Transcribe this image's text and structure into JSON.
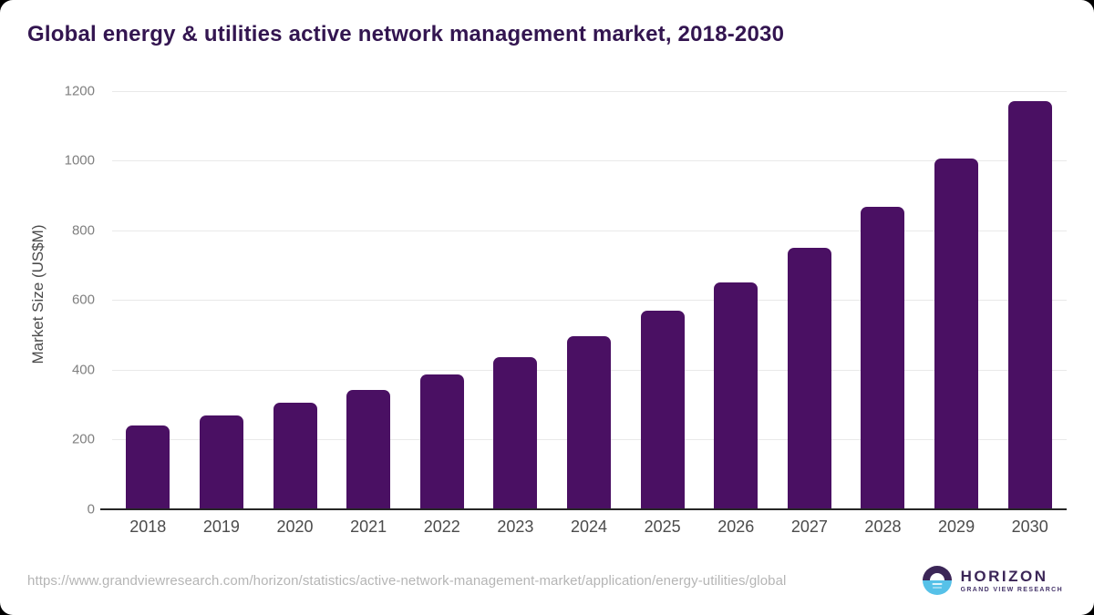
{
  "title": "Global energy & utilities active network management market, 2018-2030",
  "chart_data": {
    "type": "bar",
    "categories": [
      "2018",
      "2019",
      "2020",
      "2021",
      "2022",
      "2023",
      "2024",
      "2025",
      "2026",
      "2027",
      "2028",
      "2029",
      "2030"
    ],
    "values": [
      240,
      269,
      304,
      341,
      385,
      437,
      495,
      569,
      651,
      750,
      868,
      1007,
      1172
    ],
    "title": "Global energy & utilities active network management market, 2018-2030",
    "xlabel": "",
    "ylabel": "Market Size (US$M)",
    "ylim": [
      0,
      1200
    ],
    "yticks": [
      0,
      200,
      400,
      600,
      800,
      1000,
      1200
    ],
    "grid": true,
    "legend": false,
    "bar_color": "#4a1063"
  },
  "footer": {
    "source_url": "https://www.grandviewresearch.com/horizon/statistics/active-network-management-market/application/energy-utilities/global",
    "logo": {
      "name": "HORIZON",
      "subtitle": "GRAND VIEW RESEARCH"
    }
  },
  "colors": {
    "bar": "#4a1063",
    "title_text": "#331550",
    "axis_line": "#262626",
    "gridline": "#e9e9e9",
    "y_tick_text": "#7f7f7f",
    "x_tick_text": "#4b4b4b",
    "url_text": "#b5b5b5",
    "logo_purple": "#3b2657",
    "logo_blue": "#56c1e8"
  }
}
